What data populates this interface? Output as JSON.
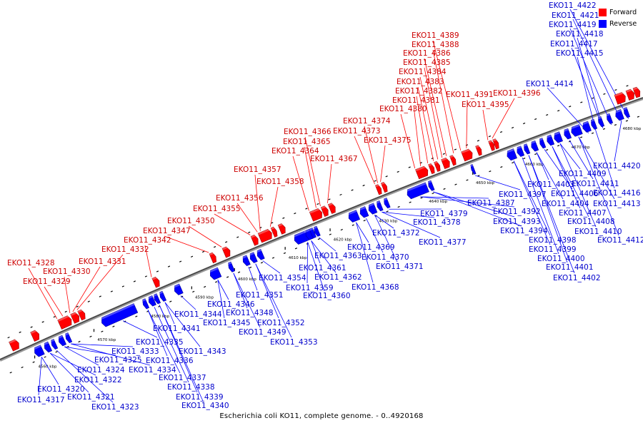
{
  "legend": {
    "forward_label": "Forward",
    "reverse_label": "Reverse",
    "forward_color": "#ff0000",
    "reverse_color": "#0000ff"
  },
  "caption": "Escherichia coli KO11, complete genome. - 0..4920168",
  "ticks": [
    "4560 kbp",
    "4570 kbp",
    "4580 kbp",
    "4590 kbp",
    "4600 kbp",
    "4610 kbp",
    "4620 kbp",
    "4630 kbp",
    "4640 kbp",
    "4650 kbp",
    "4660 kbp",
    "4670 kbp",
    "4680 kbp"
  ],
  "forward_labels": [
    "EKO11_4328",
    "EKO11_4329",
    "EKO11_4330",
    "EKO11_4331",
    "EKO11_4332",
    "EKO11_4342",
    "EKO11_4347",
    "EKO11_4350",
    "EKO11_4355",
    "EKO11_4356",
    "EKO11_4357",
    "EKO11_4358",
    "EKO11_4364",
    "EKO11_4365",
    "EKO11_4366",
    "EKO11_4367",
    "EKO11_4373",
    "EKO11_4374",
    "EKO11_4375",
    "EKO11_4380",
    "EKO11_4381",
    "EKO11_4382",
    "EKO11_4383",
    "EKO11_4384",
    "EKO11_4385",
    "EKO11_4386",
    "EKO11_4388",
    "EKO11_4389",
    "EKO11_4391",
    "EKO11_4395",
    "EKO11_4396"
  ],
  "reverse_labels": [
    "EKO11_4317",
    "EKO11_4320",
    "EKO11_4321",
    "EKO11_4322",
    "EKO11_4323",
    "EKO11_4324",
    "EKO11_4325",
    "EKO11_4333",
    "EKO11_4334",
    "EKO11_4335",
    "EKO11_4336",
    "EKO11_4337",
    "EKO11_4338",
    "EKO11_4339",
    "EKO11_4340",
    "EKO11_4341",
    "EKO11_4343",
    "EKO11_4344",
    "EKO11_4345",
    "EKO11_4346",
    "EKO11_4348",
    "EKO11_4349",
    "EKO11_4351",
    "EKO11_4352",
    "EKO11_4353",
    "EKO11_4354",
    "EKO11_4359",
    "EKO11_4360",
    "EKO11_4361",
    "EKO11_4362",
    "EKO11_4363",
    "EKO11_4368",
    "EKO11_4369",
    "EKO11_4370",
    "EKO11_4371",
    "EKO11_4372",
    "EKO11_4377",
    "EKO11_4378",
    "EKO11_4379",
    "EKO11_4387",
    "EKO11_4392",
    "EKO11_4393",
    "EKO11_4394",
    "EKO11_4397",
    "EKO11_4398",
    "EKO11_4399",
    "EKO11_4400",
    "EKO11_4401",
    "EKO11_4402",
    "EKO11_4403",
    "EKO11_4404",
    "EKO11_4406",
    "EKO11_4407",
    "EKO11_4408",
    "EKO11_4409",
    "EKO11_4410",
    "EKO11_4411",
    "EKO11_4412",
    "EKO11_4413",
    "EKO11_4414",
    "EKO11_4415",
    "EKO11_4416",
    "EKO11_4417",
    "EKO11_4418",
    "EKO11_4419",
    "EKO11_4420",
    "EKO11_4421",
    "EKO11_4422"
  ]
}
